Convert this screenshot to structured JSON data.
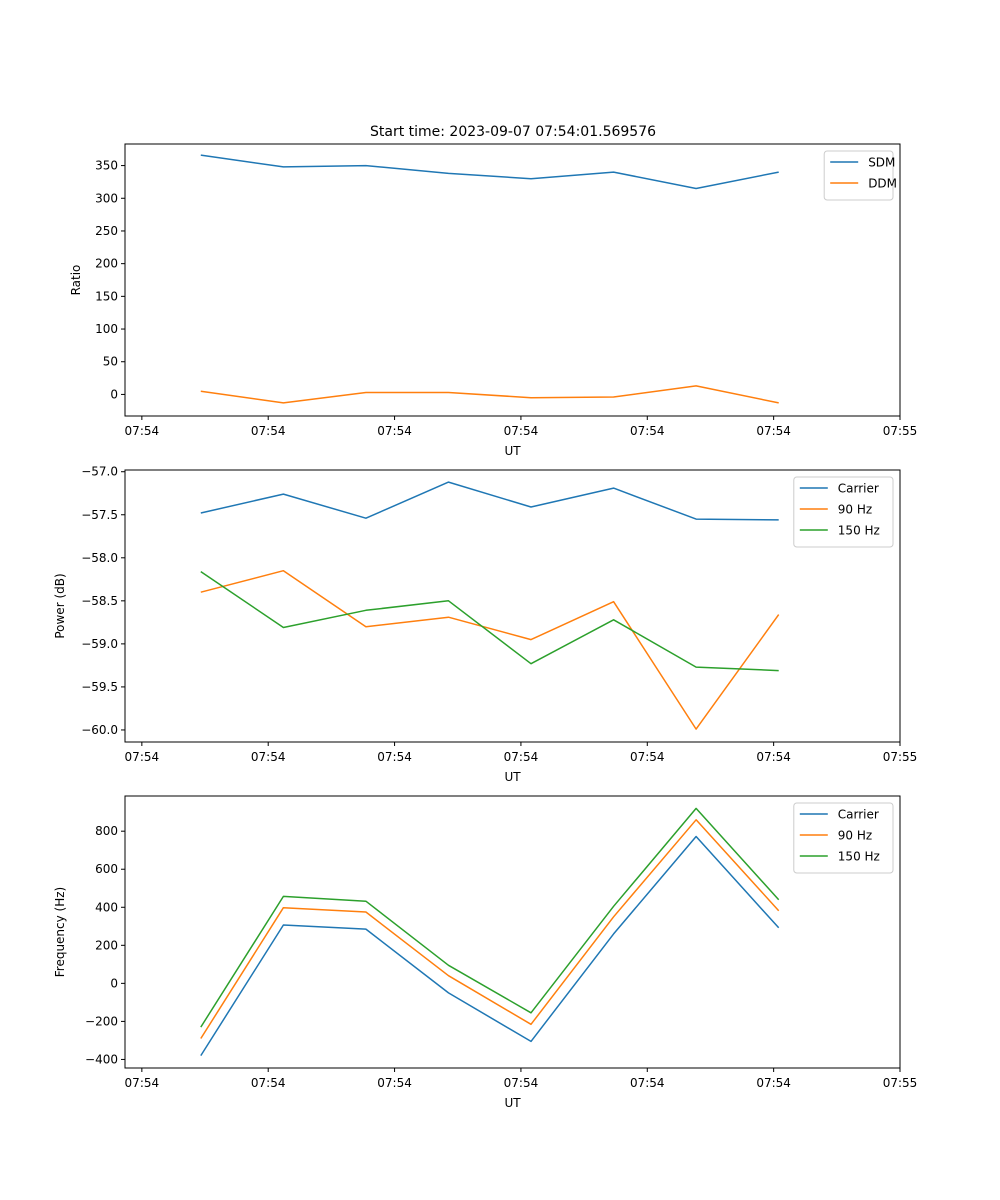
{
  "figure_title": "Start time: 2023-09-07 07:54:01.569576",
  "colors": {
    "blue": "#1f77b4",
    "orange": "#ff7f0e",
    "green": "#2ca02c"
  },
  "chart_data": [
    {
      "type": "line",
      "title": "Start time: 2023-09-07 07:54:01.569576",
      "xlabel": "UT",
      "ylabel": "Ratio",
      "xlim": [
        0.0,
        9.2
      ],
      "x_ticks": [
        0.2,
        1.7,
        3.2,
        4.7,
        6.2,
        7.7,
        9.2
      ],
      "x_tick_labels": [
        "07:54",
        "07:54",
        "07:54",
        "07:54",
        "07:54",
        "07:54",
        "07:55"
      ],
      "ylim": [
        -33,
        383
      ],
      "y_ticks": [
        0,
        50,
        100,
        150,
        200,
        250,
        300,
        350
      ],
      "y_tick_labels": [
        "0",
        "50",
        "100",
        "150",
        "200",
        "250",
        "300",
        "350"
      ],
      "legend_position": "top-right",
      "x": [
        0.9,
        1.88,
        2.86,
        3.84,
        4.82,
        5.8,
        6.78,
        7.76
      ],
      "series": [
        {
          "name": "SDM",
          "color": "#1f77b4",
          "values": [
            366,
            348,
            350,
            338,
            330,
            340,
            315,
            340
          ]
        },
        {
          "name": "DDM",
          "color": "#ff7f0e",
          "values": [
            5,
            -13,
            3,
            3,
            -5,
            -4,
            13,
            -13
          ]
        }
      ]
    },
    {
      "type": "line",
      "title": "",
      "xlabel": "UT",
      "ylabel": "Power (dB)",
      "xlim": [
        0.0,
        9.2
      ],
      "x_ticks": [
        0.2,
        1.7,
        3.2,
        4.7,
        6.2,
        7.7,
        9.2
      ],
      "x_tick_labels": [
        "07:54",
        "07:54",
        "07:54",
        "07:54",
        "07:54",
        "07:54",
        "07:55"
      ],
      "ylim": [
        -60.14,
        -56.98
      ],
      "y_ticks": [
        -57.0,
        -57.5,
        -58.0,
        -58.5,
        -59.0,
        -59.5,
        -60.0
      ],
      "y_tick_labels": [
        "−57.0",
        "−57.5",
        "−58.0",
        "−58.5",
        "−59.0",
        "−59.5",
        "−60.0"
      ],
      "legend_position": "top-right",
      "x": [
        0.9,
        1.88,
        2.86,
        3.84,
        4.82,
        5.8,
        6.78,
        7.76
      ],
      "series": [
        {
          "name": "Carrier",
          "color": "#1f77b4",
          "values": [
            -57.48,
            -57.26,
            -57.54,
            -57.12,
            -57.41,
            -57.19,
            -57.55,
            -57.56
          ]
        },
        {
          "name": "90 Hz",
          "color": "#ff7f0e",
          "values": [
            -58.4,
            -58.15,
            -58.8,
            -58.69,
            -58.95,
            -58.51,
            -59.99,
            -58.66
          ]
        },
        {
          "name": "150 Hz",
          "color": "#2ca02c",
          "values": [
            -58.16,
            -58.81,
            -58.61,
            -58.5,
            -59.23,
            -58.72,
            -59.27,
            -59.31
          ]
        }
      ]
    },
    {
      "type": "line",
      "title": "",
      "xlabel": "UT",
      "ylabel": "Frequency (Hz)",
      "xlim": [
        0.0,
        9.2
      ],
      "x_ticks": [
        0.2,
        1.7,
        3.2,
        4.7,
        6.2,
        7.7,
        9.2
      ],
      "x_tick_labels": [
        "07:54",
        "07:54",
        "07:54",
        "07:54",
        "07:54",
        "07:54",
        "07:55"
      ],
      "ylim": [
        -445,
        985
      ],
      "y_ticks": [
        -400,
        -200,
        0,
        200,
        400,
        600,
        800
      ],
      "y_tick_labels": [
        "−400",
        "−200",
        "0",
        "200",
        "400",
        "600",
        "800"
      ],
      "legend_position": "top-right",
      "x": [
        0.9,
        1.88,
        2.86,
        3.84,
        4.82,
        5.8,
        6.78,
        7.76
      ],
      "series": [
        {
          "name": "Carrier",
          "color": "#1f77b4",
          "values": [
            -380,
            307,
            285,
            -50,
            -305,
            260,
            772,
            292
          ]
        },
        {
          "name": "90 Hz",
          "color": "#ff7f0e",
          "values": [
            -290,
            398,
            375,
            40,
            -215,
            350,
            860,
            382
          ]
        },
        {
          "name": "150 Hz",
          "color": "#2ca02c",
          "values": [
            -230,
            457,
            432,
            95,
            -155,
            405,
            920,
            440
          ]
        }
      ]
    }
  ]
}
